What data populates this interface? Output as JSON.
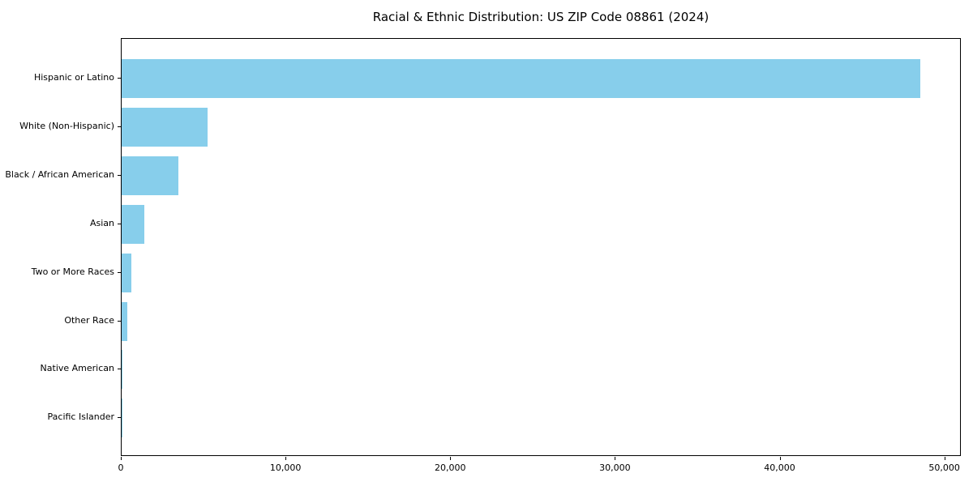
{
  "chart_data": {
    "type": "bar",
    "orientation": "horizontal",
    "title": "Racial & Ethnic Distribution: US ZIP Code 08861 (2024)",
    "categories": [
      "Hispanic or Latino",
      "White (Non-Hispanic)",
      "Black / African American",
      "Asian",
      "Two or More Races",
      "Other Race",
      "Native American",
      "Pacific Islander"
    ],
    "values": [
      48500,
      5200,
      3450,
      1400,
      600,
      350,
      25,
      10
    ],
    "xlabel": "",
    "ylabel": "",
    "xlim": [
      0,
      51000
    ],
    "xticks": [
      0,
      10000,
      20000,
      30000,
      40000,
      50000
    ],
    "xtick_labels": [
      "0",
      "10,000",
      "20,000",
      "30,000",
      "40,000",
      "50,000"
    ],
    "bar_color": "#87CEEB",
    "axis_color": "#000000",
    "background_color": "#ffffff",
    "grid": false,
    "legend": null
  }
}
